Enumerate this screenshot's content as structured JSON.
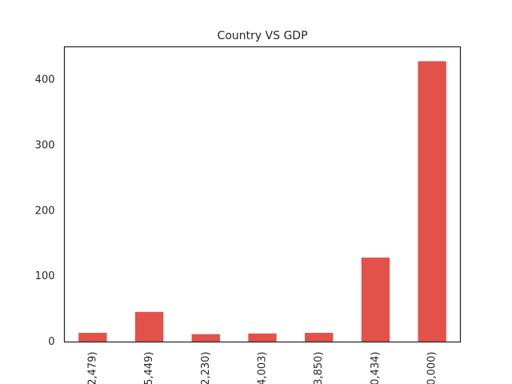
{
  "chart_data": {
    "type": "bar",
    "title": "Country VS GDP",
    "xlabel": "",
    "ylabel": "",
    "categories": [
      "2,479)",
      "5,449)",
      "2,230)",
      "4,003)",
      "3,850)",
      "0,434)",
      "0,000)"
    ],
    "values": [
      14,
      46,
      12,
      13,
      14,
      129,
      429
    ],
    "ylim": [
      0,
      451
    ],
    "yticks": [
      0,
      100,
      200,
      300,
      400
    ],
    "grid": false,
    "legend": "none",
    "bar_color": "#e2524a",
    "axis_color": "#262626"
  }
}
